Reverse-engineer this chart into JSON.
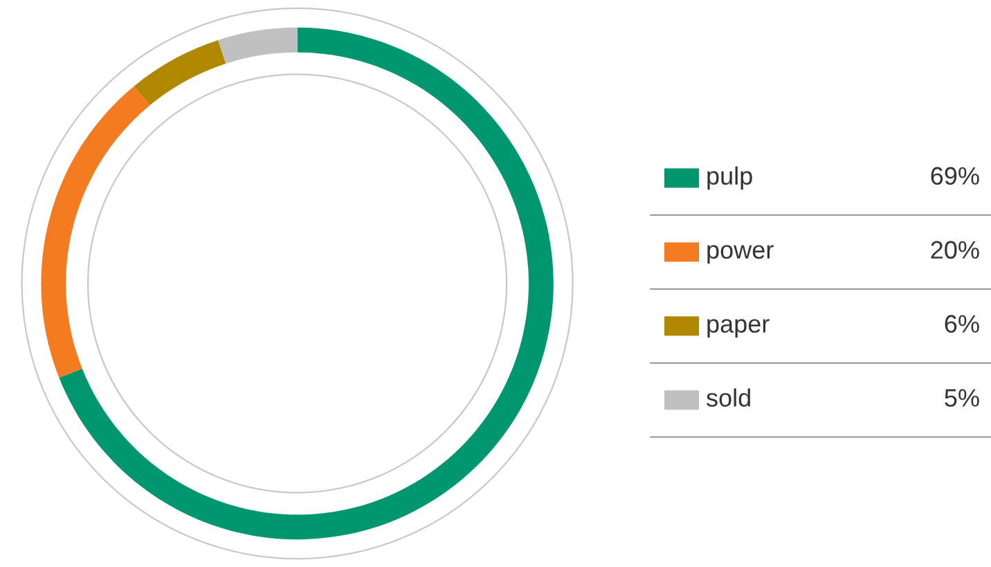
{
  "chart_data": {
    "type": "donut",
    "categories": [
      "pulp",
      "power",
      "paper",
      "sold"
    ],
    "values": [
      69,
      20,
      6,
      5
    ],
    "value_labels": [
      "69%",
      "20%",
      "6%",
      "5%"
    ],
    "colors": [
      "#009670",
      "#f47b20",
      "#b08800",
      "#c0c0c0"
    ],
    "legend": "right"
  }
}
